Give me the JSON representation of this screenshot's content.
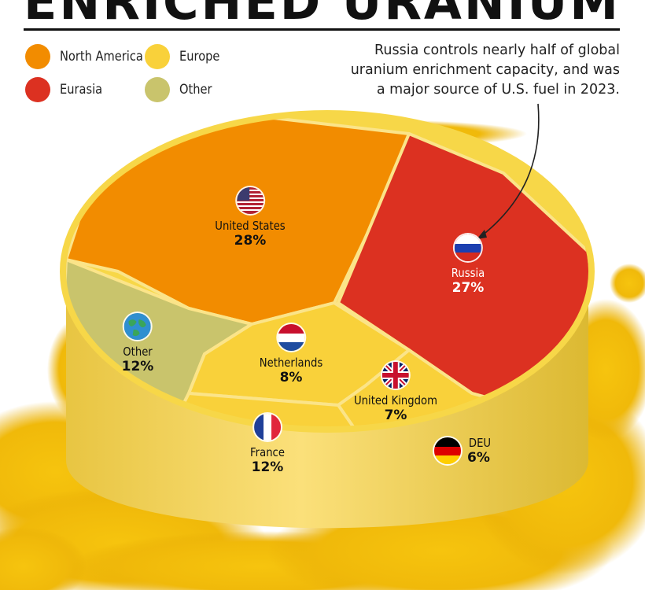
{
  "title": "ENRICHED URANIUM",
  "annotation": [
    "Russia controls nearly half of global",
    "uranium enrichment capacity, and was",
    "a major source of U.S. fuel in 2023."
  ],
  "legend": [
    {
      "label": "North America",
      "color": "#f28c00"
    },
    {
      "label": "Europe",
      "color": "#f9d13a"
    },
    {
      "label": "Eurasia",
      "color": "#dc3121"
    },
    {
      "label": "Other",
      "color": "#c9c46c"
    }
  ],
  "chart_data": {
    "type": "pie",
    "slices": [
      {
        "label": "United States",
        "value": 28,
        "value_label": "28%",
        "region": "North America",
        "color": "#f28c00",
        "icon": "us-flag-icon"
      },
      {
        "label": "Russia",
        "value": 27,
        "value_label": "27%",
        "region": "Eurasia",
        "color": "#dc3121",
        "icon": "russia-flag-icon"
      },
      {
        "label": "Other",
        "value": 12,
        "value_label": "12%",
        "region": "Other",
        "color": "#c9c46c",
        "icon": "globe-icon"
      },
      {
        "label": "Netherlands",
        "value": 8,
        "value_label": "8%",
        "region": "Europe",
        "color": "#f9d13a",
        "icon": "netherlands-flag-icon"
      },
      {
        "label": "United Kingdom",
        "value": 7,
        "value_label": "7%",
        "region": "Europe",
        "color": "#f9d13a",
        "icon": "uk-flag-icon"
      },
      {
        "label": "DEU",
        "value": 6,
        "value_label": "6%",
        "region": "Europe",
        "color": "#f9d13a",
        "icon": "germany-flag-icon"
      },
      {
        "label": "France",
        "value": 12,
        "value_label": "12%",
        "region": "Europe",
        "color": "#f9d13a",
        "icon": "france-flag-icon"
      }
    ]
  }
}
